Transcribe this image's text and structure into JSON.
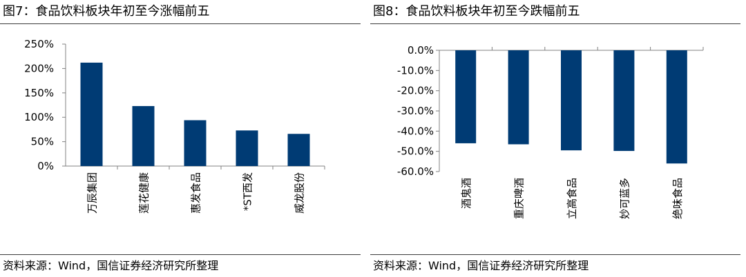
{
  "colors": {
    "bar": "#003B74",
    "axis": "#808080"
  },
  "charts": [
    {
      "title": "图7：食品饮料板块年初至今涨幅前五",
      "source": "资料来源：Wind，国信证券经济研究所整理",
      "chart_data": {
        "type": "bar",
        "categories": [
          "万辰集团",
          "莲花健康",
          "惠发食品",
          "*ST西发",
          "威龙股份"
        ],
        "values": [
          212,
          123,
          94,
          73,
          66
        ],
        "value_unit": "%",
        "ylim": [
          0,
          250
        ],
        "yticks": [
          0,
          50,
          100,
          150,
          200,
          250
        ],
        "ytick_labels": [
          "0%",
          "50%",
          "100%",
          "150%",
          "200%",
          "250%"
        ],
        "title": "",
        "xlabel": "",
        "ylabel": "",
        "grid": false,
        "legend": "none"
      }
    },
    {
      "title": "图8：食品饮料板块年初至今跌幅前五",
      "source": "资料来源：Wind，国信证券经济研究所整理",
      "chart_data": {
        "type": "bar",
        "categories": [
          "酒鬼酒",
          "重庆啤酒",
          "立高食品",
          "妙可蓝多",
          "绝味食品"
        ],
        "values": [
          -46,
          -46.5,
          -49.5,
          -49.8,
          -56
        ],
        "value_unit": "%",
        "ylim": [
          -60,
          0
        ],
        "yticks": [
          0,
          -10,
          -20,
          -30,
          -40,
          -50,
          -60
        ],
        "ytick_labels": [
          "0.0%",
          "-10.0%",
          "-20.0%",
          "-30.0%",
          "-40.0%",
          "-50.0%",
          "-60.0%"
        ],
        "title": "",
        "xlabel": "",
        "ylabel": "",
        "grid": false,
        "legend": "none"
      }
    }
  ]
}
